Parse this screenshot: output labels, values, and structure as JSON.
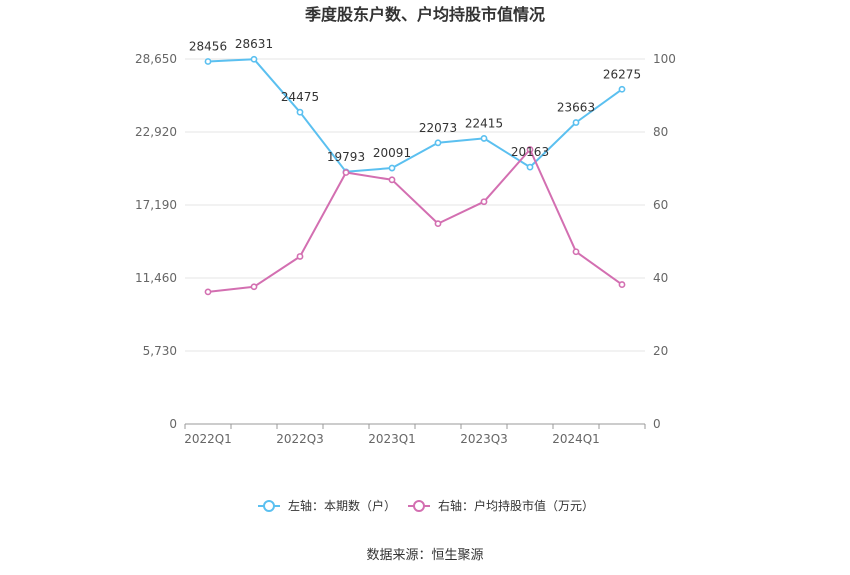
{
  "chart_data": {
    "type": "line",
    "title": "季度股东户数、户均持股市值情况",
    "categories": [
      "2022Q1",
      "2022Q2",
      "2022Q3",
      "2022Q4",
      "2023Q1",
      "2023Q2",
      "2023Q3",
      "2023Q4",
      "2024Q1",
      "2024Q2"
    ],
    "x_tick_labels": [
      "2022Q1",
      "2022Q3",
      "2023Q1",
      "2023Q3",
      "2024Q1"
    ],
    "left_axis": {
      "ylim": [
        0,
        28650
      ],
      "ticks": [
        0,
        5730,
        11460,
        17190,
        22920,
        28650
      ],
      "tick_labels": [
        "0",
        "5,730",
        "11,460",
        "17,190",
        "22,920",
        "28,650"
      ]
    },
    "right_axis": {
      "ylim": [
        0,
        100
      ],
      "ticks": [
        0,
        20,
        40,
        60,
        80,
        100
      ],
      "tick_labels": [
        "0",
        "20",
        "40",
        "60",
        "80",
        "100"
      ]
    },
    "grid": true,
    "legend_position": "bottom",
    "series": [
      {
        "name": "左轴：本期数（户）",
        "axis": "left",
        "color": "#5bc0f0",
        "values": [
          28456,
          28631,
          24475,
          19793,
          20091,
          22073,
          22415,
          20163,
          23663,
          26275
        ],
        "labels": [
          "28456",
          "28631",
          "24475",
          "19793",
          "20091",
          "22073",
          "22415",
          "20163",
          "23663",
          "26275"
        ]
      },
      {
        "name": "右轴：户均持股市值（万元）",
        "axis": "right",
        "color": "#d36fb1",
        "values": [
          36.2,
          37.6,
          45.9,
          68.9,
          66.9,
          54.9,
          60.9,
          75.2,
          47.2,
          38.2
        ]
      }
    ],
    "source": "数据来源：恒生聚源"
  }
}
